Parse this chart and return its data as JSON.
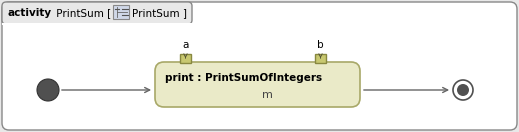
{
  "bg_color": "#e8e8e8",
  "border_color": "#888888",
  "diagram_bg": "#ffffff",
  "tab_bg": "#e8e8e8",
  "tab_border": "#888888",
  "tab_text_bold": "activity",
  "tab_text_normal": " PrintSum [",
  "tab_icon_text": "PrintSum ]",
  "action_label_line1": "print : PrintSumOfIntegers",
  "action_label_line2": "m",
  "pin_a_label": "a",
  "pin_b_label": "b",
  "action_box_fill_top": "#f0f0d8",
  "action_box_fill": "#eaeac8",
  "action_box_edge": "#a8a868",
  "initial_node_color": "#505050",
  "final_node_outer": "#505050",
  "final_node_inner": "#505050",
  "arrow_color": "#666666",
  "pin_fill": "#c8c870",
  "pin_edge": "#888840",
  "icon_fill": "#d0d8e8",
  "icon_edge": "#888888"
}
